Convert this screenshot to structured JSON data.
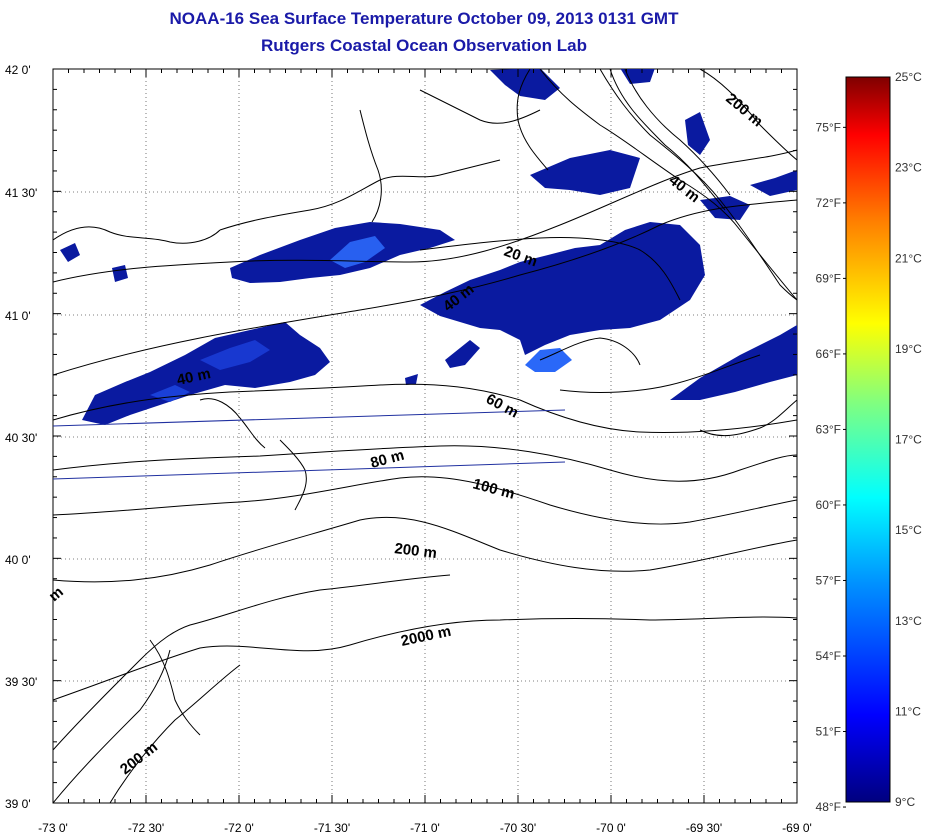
{
  "title": "NOAA-16 Sea Surface Temperature October 09, 2013 0131 GMT",
  "subtitle": "Rutgers Coastal Ocean Observation Lab",
  "colors": {
    "title": "#1a1aa8",
    "contour": "#000000",
    "track_line": "#2030a0",
    "sst_dark": "#00108a",
    "sst_mid": "#1030c8",
    "sst_light": "#3070ff"
  },
  "map": {
    "lon_labels": [
      "-73 0'",
      "-72 30'",
      "-72 0'",
      "-71 30'",
      "-71 0'",
      "-70 30'",
      "-70 0'",
      "-69 30'",
      "-69 0'"
    ],
    "lat_labels": [
      "42 0'",
      "41 30'",
      "41 0'",
      "40 30'",
      "40 0'",
      "39 30'",
      "39 0'"
    ],
    "depth_labels": [
      "200 m",
      "40 m",
      "20 m",
      "40 m",
      "40 m",
      "60 m",
      "80 m",
      "100 m",
      "200 m",
      "2000 m",
      "200 m",
      "m"
    ]
  },
  "colorbar": {
    "celsius_labels": [
      "25°C",
      "23°C",
      "21°C",
      "19°C",
      "17°C",
      "15°C",
      "13°C",
      "11°C",
      "9°C"
    ],
    "fahrenheit_labels": [
      "75°F",
      "72°F",
      "69°F",
      "66°F",
      "63°F",
      "60°F",
      "57°F",
      "54°F",
      "51°F",
      "48°F"
    ],
    "celsius_values": [
      25,
      23,
      21,
      19,
      17,
      15,
      13,
      11,
      9
    ],
    "fahrenheit_values": [
      75,
      72,
      69,
      66,
      63,
      60,
      57,
      54,
      51,
      48
    ]
  }
}
